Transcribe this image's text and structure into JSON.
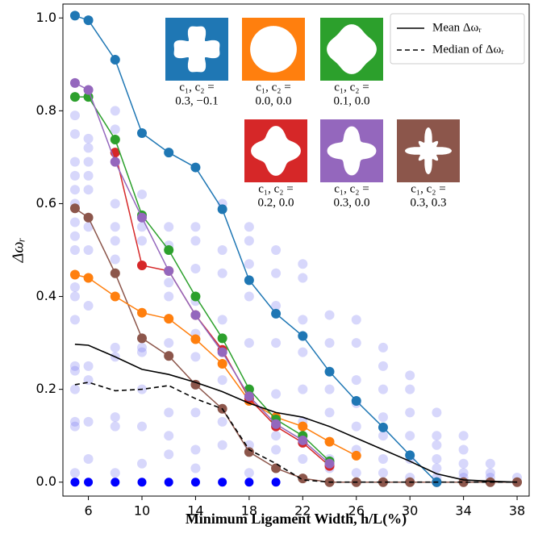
{
  "chart_data": {
    "type": "line",
    "xlabel": "Minimum Ligament Width, h/L(%)",
    "ylabel": "Δωᵣ",
    "xlim": [
      4.1,
      38.9
    ],
    "ylim": [
      -0.03,
      1.03
    ],
    "xticks": [
      6,
      10,
      14,
      18,
      22,
      26,
      30,
      34,
      38
    ],
    "yticks": [
      {
        "value": 0,
        "label": "0.0"
      },
      0.2,
      0.4,
      0.6,
      0.8,
      {
        "value": 1,
        "label": "1.0"
      }
    ],
    "grid": false,
    "legend": "upper right",
    "x": [
      5,
      6,
      8,
      10,
      12,
      14,
      16,
      18,
      20,
      22,
      24,
      26,
      28,
      30,
      32,
      34,
      36,
      38
    ],
    "samples": [
      {
        "x": 5,
        "values": [
          0.13,
          0.02,
          0.12,
          0.2,
          0.24,
          0.25,
          0.35,
          0.4,
          0.42,
          0.5,
          0.53,
          0.56,
          0.6,
          0.63,
          0.66,
          0.69,
          0.75,
          0.79
        ]
      },
      {
        "x": 6,
        "values": [
          0.05,
          0.13,
          0.22,
          0.25,
          0.38,
          0.5,
          0.55,
          0.63,
          0.66,
          0.69,
          0.72,
          0.74
        ]
      },
      {
        "x": 8,
        "values": [
          0.02,
          0.12,
          0.14,
          0.27,
          0.29,
          0.48,
          0.52,
          0.55,
          0.6,
          0.69,
          0.76,
          0.8
        ]
      },
      {
        "x": 10,
        "values": [
          0.04,
          0.12,
          0.2,
          0.28,
          0.29,
          0.52,
          0.55,
          0.62
        ]
      },
      {
        "x": 12,
        "values": [
          0.06,
          0.1,
          0.15,
          0.3,
          0.4,
          0.43,
          0.51,
          0.55
        ]
      },
      {
        "x": 14,
        "values": [
          0.03,
          0.07,
          0.15,
          0.27,
          0.32,
          0.39,
          0.46,
          0.52,
          0.55
        ]
      },
      {
        "x": 16,
        "values": [
          0.08,
          0.13,
          0.22,
          0.35,
          0.45,
          0.5,
          0.6
        ]
      },
      {
        "x": 18,
        "values": [
          0.02,
          0.08,
          0.2,
          0.3,
          0.4,
          0.47,
          0.52,
          0.55
        ]
      },
      {
        "x": 20,
        "values": [
          0.07,
          0.1,
          0.19,
          0.3,
          0.38,
          0.45,
          0.5
        ]
      },
      {
        "x": 22,
        "values": [
          0.05,
          0.13,
          0.2,
          0.28,
          0.35,
          0.44,
          0.47
        ]
      },
      {
        "x": 24,
        "values": [
          0.03,
          0.05,
          0.15,
          0.2,
          0.3,
          0.36
        ]
      },
      {
        "x": 26,
        "values": [
          0.02,
          0.07,
          0.12,
          0.17,
          0.22,
          0.3,
          0.35
        ]
      },
      {
        "x": 28,
        "values": [
          0.02,
          0.05,
          0.1,
          0.14,
          0.2,
          0.25,
          0.29
        ]
      },
      {
        "x": 30,
        "values": [
          0.01,
          0.05,
          0.1,
          0.15,
          0.2,
          0.23
        ]
      },
      {
        "x": 32,
        "values": [
          0.01,
          0.03,
          0.05,
          0.08,
          0.1,
          0.15
        ]
      },
      {
        "x": 34,
        "values": [
          0.01,
          0.02,
          0.04,
          0.07,
          0.1
        ]
      },
      {
        "x": 36,
        "values": [
          0.01,
          0.02,
          0.04
        ]
      },
      {
        "x": 38,
        "values": [
          0.01
        ]
      }
    ],
    "sample_color": "#6e6ef0",
    "zeros": {
      "color": "#0000ff",
      "x": [
        5,
        6,
        8,
        10,
        12,
        14,
        16,
        18,
        20
      ],
      "values": [
        0,
        0,
        0,
        0,
        0,
        0,
        0,
        0,
        0
      ]
    },
    "series": [
      {
        "color": "#8c564b",
        "marker": true,
        "values": [
          0.59,
          0.57,
          0.45,
          0.31,
          0.272,
          0.21,
          0.158,
          0.065,
          0.03,
          0.008,
          0,
          0,
          0,
          0,
          0,
          0,
          0,
          0
        ]
      },
      {
        "color": "#ff7f0e",
        "marker": true,
        "values": [
          0.447,
          0.44,
          0.4,
          0.365,
          0.352,
          0.308,
          0.255,
          0.175,
          0.14,
          0.12,
          0.087,
          0.057,
          null,
          null,
          null,
          null,
          null,
          null
        ]
      },
      {
        "color": "#d62728",
        "marker": true,
        "values": [
          null,
          null,
          0.71,
          0.467,
          0.455,
          0.36,
          0.285,
          0.18,
          0.12,
          0.085,
          0.035,
          null,
          null,
          null,
          null,
          null,
          null,
          null
        ]
      },
      {
        "color": "#2ca02c",
        "marker": true,
        "values": [
          0.83,
          0.83,
          0.738,
          0.575,
          0.5,
          0.4,
          0.31,
          0.2,
          0.135,
          0.1,
          0.045,
          null,
          null,
          null,
          null,
          null,
          null,
          null
        ]
      },
      {
        "color": "#9467bd",
        "marker": true,
        "values": [
          0.86,
          0.845,
          0.69,
          0.57,
          0.455,
          0.36,
          0.28,
          0.185,
          0.125,
          0.09,
          0.04,
          null,
          null,
          null,
          null,
          null,
          null,
          null
        ]
      },
      {
        "color": "#1f77b4",
        "marker": true,
        "values": [
          1.005,
          0.995,
          0.91,
          0.752,
          0.71,
          0.678,
          0.588,
          0.435,
          0.363,
          0.315,
          0.238,
          0.175,
          0.118,
          0.058,
          0,
          null,
          null,
          null
        ]
      },
      {
        "name": "Mean Δωᵣ",
        "color": "#000000",
        "dashed": false,
        "values": [
          0.297,
          0.295,
          0.27,
          0.243,
          0.232,
          0.215,
          0.195,
          0.17,
          0.15,
          0.14,
          0.12,
          0.095,
          0.07,
          0.045,
          0.018,
          0.005,
          0.002,
          0
        ]
      },
      {
        "name": "Median of Δωᵣ",
        "color": "#000000",
        "dashed": true,
        "values": [
          0.21,
          0.215,
          0.197,
          0.2,
          0.208,
          0.18,
          0.158,
          0.07,
          0.04,
          0.005,
          0,
          0,
          0,
          0,
          0,
          0,
          0,
          0
        ]
      }
    ],
    "insets": [
      {
        "color": "#1f77b4",
        "label": [
          "c₁, c₂ =",
          "0.3, −0.1"
        ]
      },
      {
        "color": "#ff7f0e",
        "label": [
          "c₁, c₂ =",
          "0.0, 0.0"
        ]
      },
      {
        "color": "#2ca02c",
        "label": [
          "c₁, c₂ =",
          "0.1, 0.0"
        ]
      },
      {
        "color": "#d62728",
        "label": [
          "c₁, c₂ =",
          "0.2, 0.0"
        ]
      },
      {
        "color": "#9467bd",
        "label": [
          "c₁, c₂ =",
          "0.3, 0.0"
        ]
      },
      {
        "color": "#8c564b",
        "label": [
          "c₁, c₂ =",
          "0.3, 0.3"
        ]
      }
    ]
  }
}
